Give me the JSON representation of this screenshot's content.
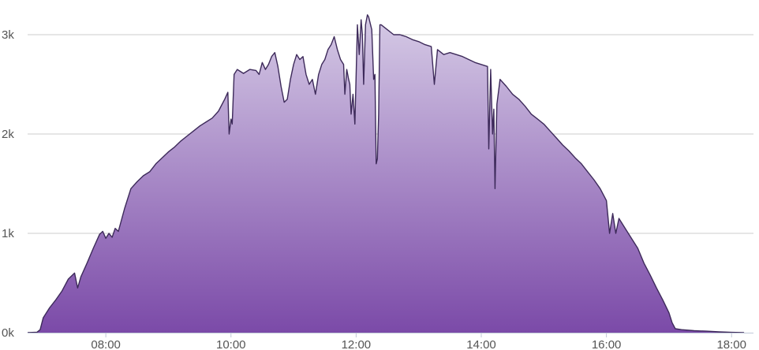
{
  "chart_data": {
    "type": "area",
    "title": "",
    "xlabel": "",
    "ylabel": "",
    "grid": true,
    "legend": "none",
    "x_unit": "hours",
    "xlim": [
      6.75,
      18.35
    ],
    "ylim": [
      0,
      3000
    ],
    "y_ticks": [
      0,
      1000,
      2000,
      3000
    ],
    "y_tick_labels": [
      "0k",
      "1k",
      "2k",
      "3k"
    ],
    "x_ticks": [
      8,
      10,
      12,
      14,
      16,
      18
    ],
    "x_tick_labels": [
      "08:00",
      "10:00",
      "12:00",
      "14:00",
      "16:00",
      "18:00"
    ],
    "colors": {
      "fill_top": "#d6cbe6",
      "fill_bottom": "#7b4aa8",
      "line": "#3d2a5a",
      "grid": "#cccccc",
      "axis": "#c0c8d8"
    },
    "series": [
      {
        "values": [
          [
            6.75,
            0
          ],
          [
            6.9,
            5
          ],
          [
            6.95,
            30
          ],
          [
            7.0,
            150
          ],
          [
            7.1,
            250
          ],
          [
            7.2,
            330
          ],
          [
            7.3,
            420
          ],
          [
            7.4,
            540
          ],
          [
            7.5,
            600
          ],
          [
            7.55,
            450
          ],
          [
            7.6,
            560
          ],
          [
            7.7,
            700
          ],
          [
            7.8,
            850
          ],
          [
            7.9,
            990
          ],
          [
            7.95,
            1020
          ],
          [
            8.0,
            950
          ],
          [
            8.05,
            1000
          ],
          [
            8.1,
            960
          ],
          [
            8.15,
            1050
          ],
          [
            8.2,
            1020
          ],
          [
            8.3,
            1250
          ],
          [
            8.4,
            1450
          ],
          [
            8.5,
            1520
          ],
          [
            8.6,
            1580
          ],
          [
            8.7,
            1620
          ],
          [
            8.8,
            1700
          ],
          [
            8.9,
            1760
          ],
          [
            9.0,
            1820
          ],
          [
            9.1,
            1870
          ],
          [
            9.2,
            1930
          ],
          [
            9.3,
            1980
          ],
          [
            9.4,
            2030
          ],
          [
            9.5,
            2080
          ],
          [
            9.6,
            2120
          ],
          [
            9.7,
            2160
          ],
          [
            9.8,
            2230
          ],
          [
            9.9,
            2350
          ],
          [
            9.95,
            2420
          ],
          [
            9.97,
            2000
          ],
          [
            10.0,
            2150
          ],
          [
            10.02,
            2100
          ],
          [
            10.05,
            2600
          ],
          [
            10.1,
            2650
          ],
          [
            10.2,
            2610
          ],
          [
            10.3,
            2650
          ],
          [
            10.4,
            2640
          ],
          [
            10.45,
            2600
          ],
          [
            10.5,
            2720
          ],
          [
            10.55,
            2650
          ],
          [
            10.6,
            2700
          ],
          [
            10.65,
            2780
          ],
          [
            10.7,
            2820
          ],
          [
            10.75,
            2680
          ],
          [
            10.8,
            2480
          ],
          [
            10.85,
            2320
          ],
          [
            10.9,
            2350
          ],
          [
            10.95,
            2550
          ],
          [
            11.0,
            2700
          ],
          [
            11.05,
            2800
          ],
          [
            11.1,
            2750
          ],
          [
            11.15,
            2780
          ],
          [
            11.2,
            2600
          ],
          [
            11.25,
            2500
          ],
          [
            11.3,
            2550
          ],
          [
            11.35,
            2400
          ],
          [
            11.4,
            2600
          ],
          [
            11.45,
            2700
          ],
          [
            11.5,
            2750
          ],
          [
            11.55,
            2850
          ],
          [
            11.6,
            2900
          ],
          [
            11.65,
            2980
          ],
          [
            11.7,
            2850
          ],
          [
            11.75,
            2750
          ],
          [
            11.8,
            2700
          ],
          [
            11.82,
            2400
          ],
          [
            11.85,
            2650
          ],
          [
            11.88,
            2550
          ],
          [
            11.9,
            2500
          ],
          [
            11.92,
            2200
          ],
          [
            11.95,
            2400
          ],
          [
            11.98,
            2100
          ],
          [
            12.0,
            2600
          ],
          [
            12.02,
            3100
          ],
          [
            12.05,
            2800
          ],
          [
            12.08,
            3150
          ],
          [
            12.1,
            3000
          ],
          [
            12.12,
            2500
          ],
          [
            12.15,
            3100
          ],
          [
            12.18,
            3200
          ],
          [
            12.2,
            3180
          ],
          [
            12.25,
            3050
          ],
          [
            12.28,
            2550
          ],
          [
            12.3,
            2600
          ],
          [
            12.32,
            1700
          ],
          [
            12.34,
            1750
          ],
          [
            12.36,
            2200
          ],
          [
            12.38,
            3100
          ],
          [
            12.4,
            3100
          ],
          [
            12.5,
            3050
          ],
          [
            12.6,
            3000
          ],
          [
            12.7,
            3000
          ],
          [
            12.8,
            2980
          ],
          [
            12.9,
            2950
          ],
          [
            13.0,
            2930
          ],
          [
            13.1,
            2900
          ],
          [
            13.2,
            2880
          ],
          [
            13.25,
            2500
          ],
          [
            13.3,
            2850
          ],
          [
            13.4,
            2800
          ],
          [
            13.5,
            2820
          ],
          [
            13.6,
            2800
          ],
          [
            13.7,
            2780
          ],
          [
            13.8,
            2750
          ],
          [
            13.9,
            2720
          ],
          [
            14.0,
            2700
          ],
          [
            14.1,
            2680
          ],
          [
            14.12,
            1850
          ],
          [
            14.15,
            2650
          ],
          [
            14.18,
            2000
          ],
          [
            14.2,
            2250
          ],
          [
            14.22,
            1450
          ],
          [
            14.25,
            2300
          ],
          [
            14.3,
            2550
          ],
          [
            14.4,
            2480
          ],
          [
            14.5,
            2400
          ],
          [
            14.6,
            2350
          ],
          [
            14.7,
            2280
          ],
          [
            14.8,
            2200
          ],
          [
            14.9,
            2150
          ],
          [
            15.0,
            2100
          ],
          [
            15.1,
            2030
          ],
          [
            15.2,
            1960
          ],
          [
            15.3,
            1890
          ],
          [
            15.4,
            1830
          ],
          [
            15.5,
            1760
          ],
          [
            15.6,
            1700
          ],
          [
            15.7,
            1620
          ],
          [
            15.8,
            1540
          ],
          [
            15.9,
            1450
          ],
          [
            16.0,
            1330
          ],
          [
            16.05,
            1000
          ],
          [
            16.1,
            1200
          ],
          [
            16.15,
            1000
          ],
          [
            16.2,
            1150
          ],
          [
            16.3,
            1050
          ],
          [
            16.4,
            950
          ],
          [
            16.5,
            850
          ],
          [
            16.6,
            700
          ],
          [
            16.7,
            580
          ],
          [
            16.8,
            450
          ],
          [
            16.9,
            330
          ],
          [
            17.0,
            200
          ],
          [
            17.05,
            100
          ],
          [
            17.1,
            40
          ],
          [
            17.2,
            30
          ],
          [
            17.4,
            20
          ],
          [
            17.6,
            15
          ],
          [
            17.8,
            8
          ],
          [
            18.0,
            3
          ],
          [
            18.2,
            0
          ]
        ]
      }
    ]
  }
}
